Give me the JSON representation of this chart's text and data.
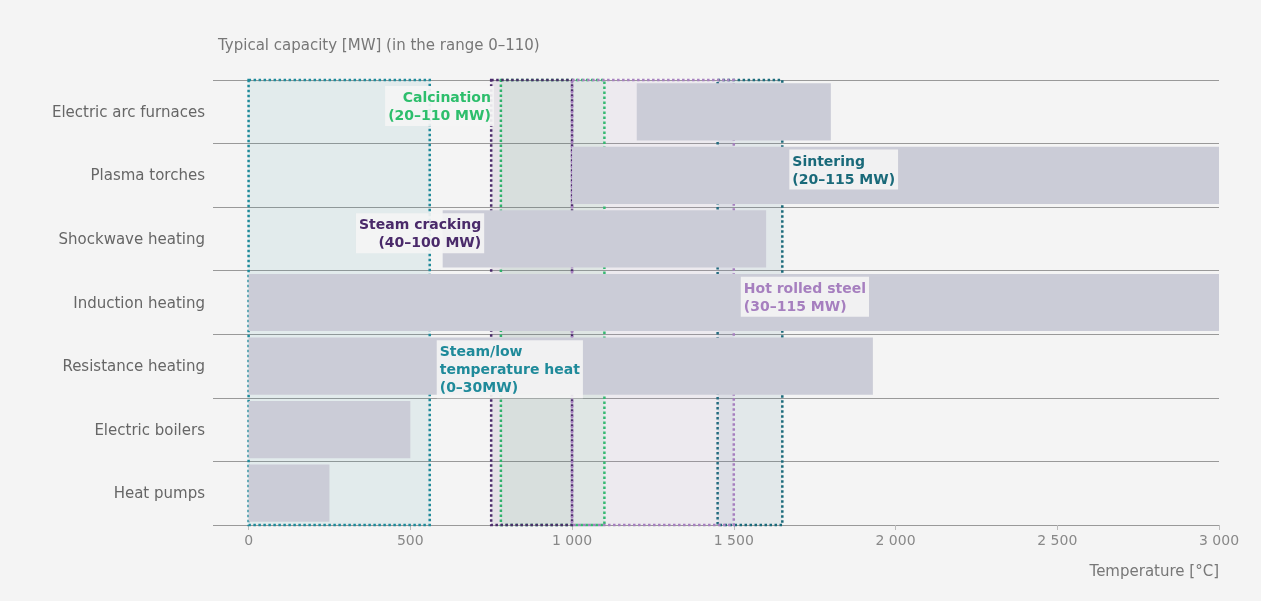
{
  "chart_data": {
    "type": "bar",
    "orientation": "horizontal",
    "title": "Typical capacity [MW] (in the range 0–110)",
    "xlabel": "Temperature [°C]",
    "categories": [
      "Electric arc furnaces",
      "Plasma torches",
      "Shockwave heating",
      "Induction heating",
      "Resistance heating",
      "Electric boilers",
      "Heat pumps"
    ],
    "base": [
      1200,
      1000,
      600,
      0,
      0,
      0,
      0
    ],
    "values": [
      600,
      2000,
      1000,
      3000,
      1930,
      500,
      250
    ],
    "color": "#cbccd7",
    "xlim": [
      -110,
      3000
    ],
    "xticks": [
      0,
      500,
      {
        "value": 1000,
        "label": "1 000"
      },
      {
        "value": 1500,
        "label": "1 500"
      },
      {
        "value": 2000,
        "label": "2 000"
      },
      {
        "value": 2500,
        "label": "2 500"
      },
      {
        "value": 3000,
        "label": "3 000"
      }
    ],
    "grid": "y",
    "bands": [
      {
        "axis": "x",
        "from": 780,
        "to": 1100,
        "label": "Calcination\n(20–110 MW)",
        "color": "#2dbe6c"
      },
      {
        "axis": "x",
        "from": 1450,
        "to": 1650,
        "label": "Sintering\n(20–115 MW)",
        "color": "#1a6a7a"
      },
      {
        "axis": "x",
        "from": 750,
        "to": 1000,
        "label": "Steam cracking\n(40–100 MW)",
        "color": "#4a2a6a"
      },
      {
        "axis": "x",
        "from": 1000,
        "to": 1500,
        "label": "Hot rolled steel\n(30–115 MW)",
        "color": "#a67fbf"
      },
      {
        "axis": "x",
        "from": 0,
        "to": 560,
        "label": "Steam/low\ntemperature heat\n(0–30MW)",
        "color": "#1f8a9a"
      }
    ]
  }
}
